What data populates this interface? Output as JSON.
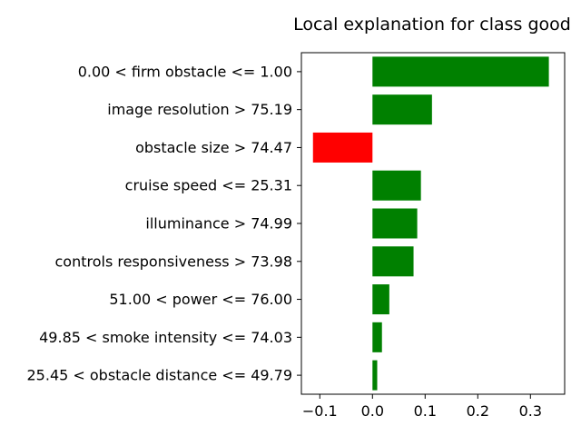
{
  "chart_data": {
    "type": "bar",
    "orientation": "horizontal",
    "title": "Local explanation for class good",
    "xlabel": "",
    "ylabel": "",
    "xlim": [
      -0.135,
      0.365
    ],
    "xticks": [
      -0.1,
      0.0,
      0.1,
      0.2,
      0.3
    ],
    "xtick_labels": [
      "−0.1",
      "0.0",
      "0.1",
      "0.2",
      "0.3"
    ],
    "grid": false,
    "legend": "none",
    "categories": [
      "0.00 < firm obstacle <= 1.00",
      "image resolution > 75.19",
      "obstacle size > 74.47",
      "cruise speed <= 25.31",
      "illuminance > 74.99",
      "controls responsiveness > 73.98",
      "51.00 < power <= 76.00",
      "49.85 < smoke intensity <= 74.03",
      "25.45 < obstacle distance <= 49.79"
    ],
    "values": [
      0.335,
      0.113,
      -0.113,
      0.092,
      0.085,
      0.078,
      0.032,
      0.018,
      0.009
    ],
    "colors": {
      "positive": "#008000",
      "negative": "#ff0000"
    }
  }
}
